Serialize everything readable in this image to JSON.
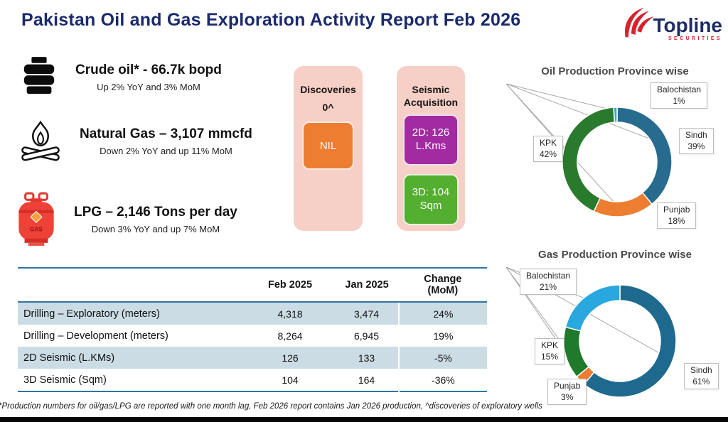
{
  "header": {
    "title": "Pakistan Oil and Gas Exploration Activity Report Feb 2026",
    "logo_name": "Topline",
    "logo_sub": "SECURITIES"
  },
  "kpis": [
    {
      "icon": "oil-barrel-icon",
      "heading": "Crude oil* - 66.7k bopd",
      "sub": "Up 2% YoY and 3% MoM"
    },
    {
      "icon": "campfire-icon",
      "heading": "Natural Gas – 3,107 mmcfd",
      "sub": "Down 2% YoY and up 11% MoM"
    },
    {
      "icon": "lpg-cylinder-icon",
      "heading": "LPG – 2,146 Tons per day",
      "sub": "Down 3% YoY and up 7% MoM"
    }
  ],
  "discoveries_card": {
    "title": "Discoveries",
    "value": "0^",
    "badge": "NIL",
    "badge_color": "#ed7d31"
  },
  "seismic_card": {
    "title": "Seismic Acquisition",
    "items": [
      {
        "label": "2D: 126 L.Kms",
        "color": "#a22ba2"
      },
      {
        "label": "3D: 104 Sqm",
        "color": "#54ae2f"
      }
    ]
  },
  "chart_data": [
    {
      "type": "pie",
      "donut": true,
      "title": "Oil Production Province wise",
      "unit": "%",
      "start_angle_deg": 0,
      "legend": "callout-labels",
      "slices": [
        {
          "label": "Sindh",
          "value": 39,
          "color": "#276b8e"
        },
        {
          "label": "Punjab",
          "value": 18,
          "color": "#ed7d31"
        },
        {
          "label": "KPK",
          "value": 42,
          "color": "#2a7a2e"
        },
        {
          "label": "Balochistan",
          "value": 1,
          "color": "#2fa8dc"
        }
      ]
    },
    {
      "type": "pie",
      "donut": true,
      "title": "Gas Production Province wise",
      "unit": "%",
      "start_angle_deg": 0,
      "legend": "callout-labels",
      "slices": [
        {
          "label": "Sindh",
          "value": 61,
          "color": "#1e6a8e"
        },
        {
          "label": "Punjab",
          "value": 3,
          "color": "#ed7d31"
        },
        {
          "label": "KPK",
          "value": 15,
          "color": "#1f7a2c"
        },
        {
          "label": "Balochistan",
          "value": 21,
          "color": "#29a8df"
        }
      ]
    }
  ],
  "table": {
    "columns": [
      "",
      "Feb 2025",
      "Jan 2025",
      "Change (MoM)"
    ],
    "rows": [
      {
        "label": "Drilling – Exploratory (meters)",
        "feb_2025": "4,318",
        "jan_2025": "3,474",
        "change_mom": "24%"
      },
      {
        "label": "Drilling – Development (meters)",
        "feb_2025": "8,264",
        "jan_2025": "6,945",
        "change_mom": "19%"
      },
      {
        "label": "2D Seismic (L.KMs)",
        "feb_2025": "126",
        "jan_2025": "133",
        "change_mom": "-5%"
      },
      {
        "label": "3D Seismic (Sqm)",
        "feb_2025": "104",
        "jan_2025": "164",
        "change_mom": "-36%"
      }
    ]
  },
  "footnote": "*Production numbers for oil/gas/LPG are reported with one month lag, Feb 2026 report contains Jan 2026 production, ^discoveries of exploratory wells"
}
